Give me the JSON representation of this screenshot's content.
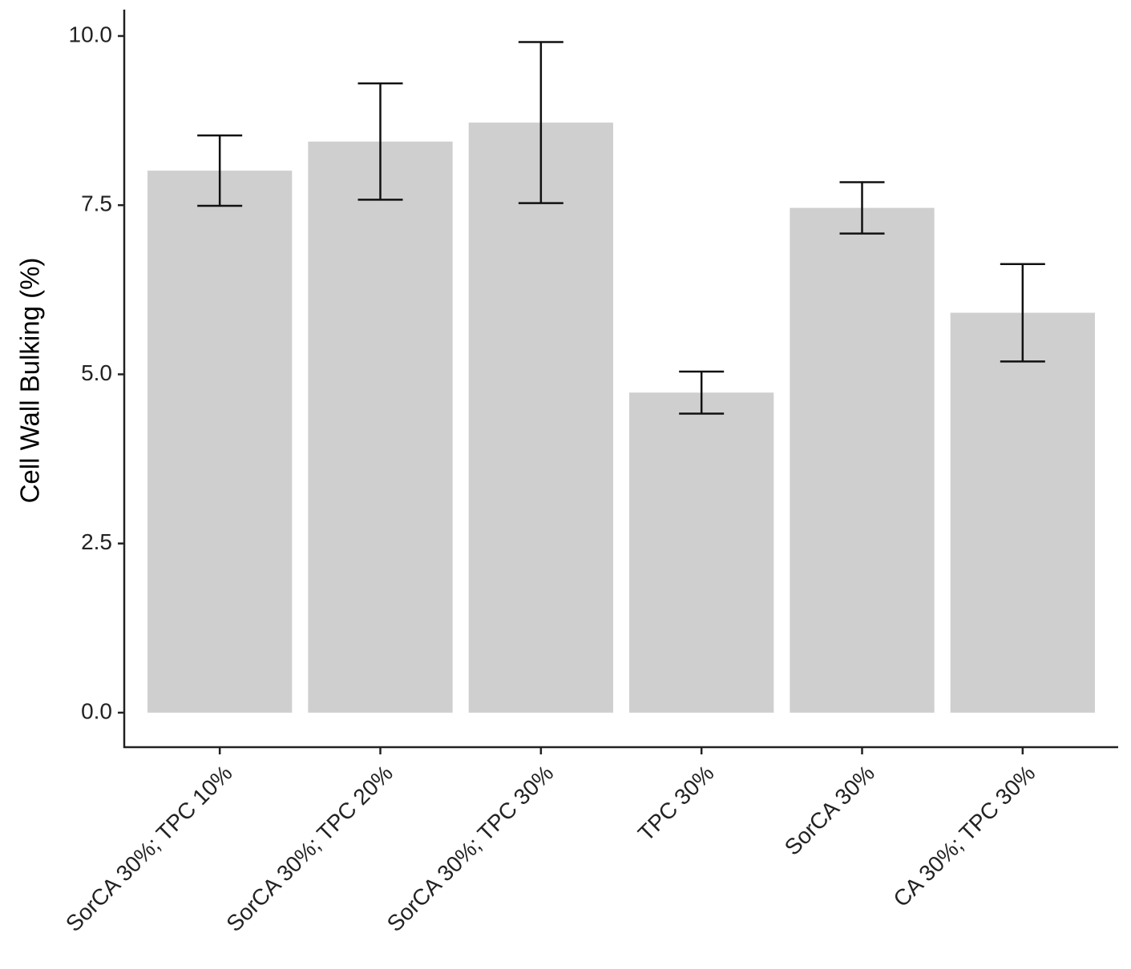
{
  "chart_data": {
    "type": "bar",
    "y_label": "Cell Wall Bulking (%)",
    "categories": [
      "SorCA 30%; TPC 10%",
      "SorCA 30%; TPC 20%",
      "SorCA 30%; TPC 30%",
      "TPC 30%",
      "SorCA 30%",
      "CA 30%; TPC 30%"
    ],
    "values": [
      8.01,
      8.44,
      8.72,
      4.73,
      7.46,
      5.91
    ],
    "errors": [
      0.52,
      0.86,
      1.19,
      0.31,
      0.38,
      0.72
    ],
    "color": "#cfcfcf",
    "ylim": [
      -0.51,
      10.39
    ],
    "yticks": [
      {
        "value": 0,
        "label": "0.0"
      },
      2.5,
      {
        "value": 5,
        "label": "5.0"
      },
      7.5,
      {
        "value": 10,
        "label": "10.0"
      }
    ],
    "grid": false
  }
}
